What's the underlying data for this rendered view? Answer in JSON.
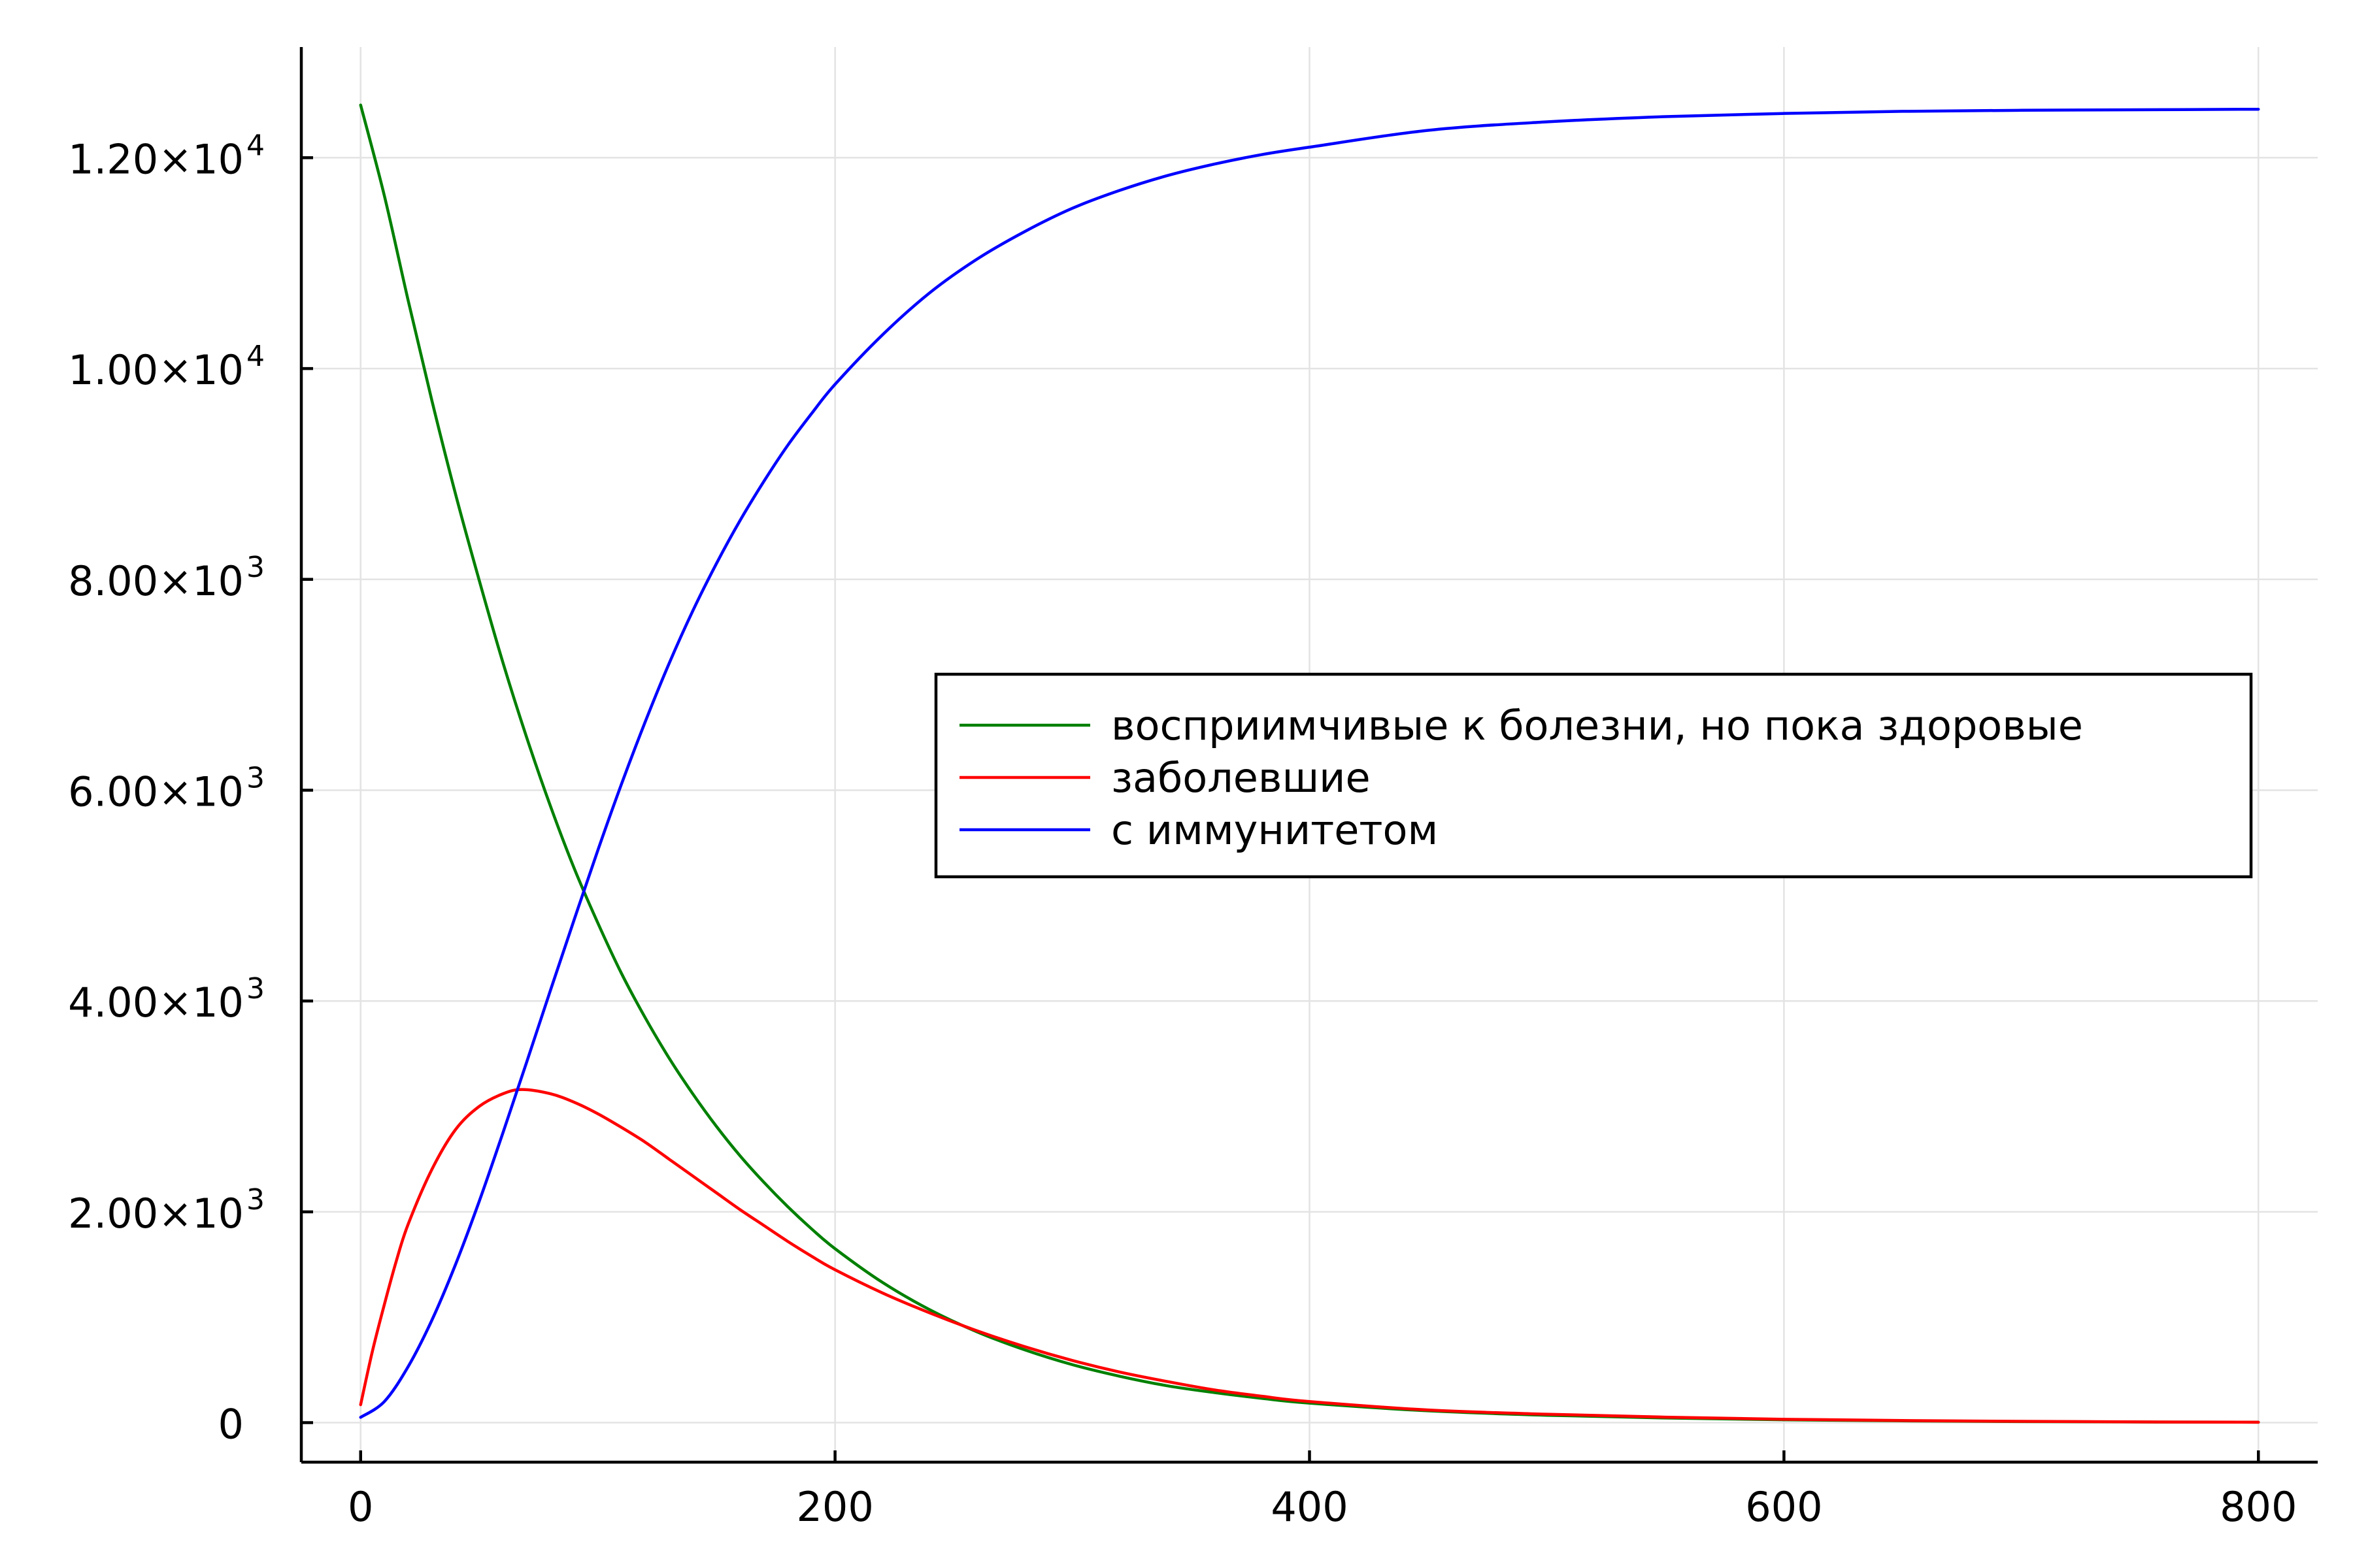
{
  "chart_data": {
    "type": "line",
    "title": "",
    "xlabel": "",
    "ylabel": "",
    "xlim": [
      -25,
      825
    ],
    "ylim": [
      -375,
      13050
    ],
    "xticks": [
      {
        "value": 0,
        "label": "0"
      },
      {
        "value": 200,
        "label": "200"
      },
      {
        "value": 400,
        "label": "400"
      },
      {
        "value": 600,
        "label": "600"
      },
      {
        "value": 800,
        "label": "800"
      }
    ],
    "yticks": [
      {
        "value": 0,
        "mantissa": "0",
        "exp": ""
      },
      {
        "value": 2000,
        "mantissa": "2.00×10",
        "exp": "3"
      },
      {
        "value": 4000,
        "mantissa": "4.00×10",
        "exp": "3"
      },
      {
        "value": 6000,
        "mantissa": "6.00×10",
        "exp": "3"
      },
      {
        "value": 8000,
        "mantissa": "8.00×10",
        "exp": "3"
      },
      {
        "value": 10000,
        "mantissa": "1.00×10",
        "exp": "4"
      },
      {
        "value": 12000,
        "mantissa": "1.20×10",
        "exp": "4"
      }
    ],
    "grid": true,
    "legend_position": "right",
    "series": [
      {
        "name": "восприимчивые к болезни, но пока здоровые",
        "color": "#008000",
        "x": [
          0,
          10,
          20,
          30,
          40,
          50,
          60,
          70,
          80,
          90,
          100,
          110,
          120,
          130,
          140,
          150,
          160,
          170,
          180,
          190,
          200,
          220,
          240,
          260,
          280,
          300,
          320,
          340,
          360,
          380,
          400,
          450,
          500,
          550,
          600,
          650,
          700,
          750,
          800
        ],
        "values": [
          12500,
          11640,
          10650,
          9700,
          8810,
          7990,
          7210,
          6500,
          5850,
          5260,
          4740,
          4260,
          3840,
          3460,
          3120,
          2810,
          2530,
          2280,
          2050,
          1840,
          1650,
          1330,
          1070,
          860,
          690,
          550,
          440,
          350,
          285,
          230,
          185,
          112,
          70,
          44,
          27,
          17,
          10,
          6,
          4
        ]
      },
      {
        "name": "заболевшие",
        "color": "#ff0000",
        "x": [
          0,
          5,
          10,
          15,
          20,
          30,
          40,
          50,
          60,
          68,
          80,
          90,
          100,
          110,
          120,
          130,
          140,
          150,
          160,
          170,
          180,
          190,
          200,
          220,
          240,
          260,
          280,
          300,
          320,
          340,
          360,
          380,
          400,
          450,
          500,
          550,
          600,
          650,
          700,
          750,
          800
        ],
        "values": [
          170,
          680,
          1120,
          1530,
          1880,
          2400,
          2780,
          3000,
          3120,
          3160,
          3120,
          3040,
          2930,
          2800,
          2660,
          2500,
          2340,
          2180,
          2020,
          1870,
          1720,
          1580,
          1450,
          1230,
          1040,
          870,
          720,
          590,
          480,
          390,
          310,
          250,
          200,
          120,
          80,
          52,
          32,
          20,
          12,
          7,
          4
        ]
      },
      {
        "name": "с иммунитетом",
        "color": "#0000ff",
        "x": [
          0,
          10,
          20,
          30,
          40,
          50,
          60,
          70,
          80,
          90,
          100,
          110,
          120,
          130,
          140,
          150,
          160,
          170,
          180,
          190,
          200,
          220,
          240,
          260,
          280,
          300,
          320,
          340,
          360,
          380,
          400,
          450,
          500,
          550,
          600,
          650,
          700,
          750,
          800
        ],
        "values": [
          50,
          200,
          530,
          970,
          1500,
          2100,
          2750,
          3420,
          4100,
          4770,
          5430,
          6060,
          6650,
          7200,
          7700,
          8150,
          8560,
          8930,
          9270,
          9570,
          9850,
          10320,
          10720,
          11040,
          11300,
          11520,
          11690,
          11830,
          11940,
          12030,
          12100,
          12260,
          12340,
          12390,
          12420,
          12440,
          12450,
          12455,
          12460
        ]
      }
    ]
  }
}
